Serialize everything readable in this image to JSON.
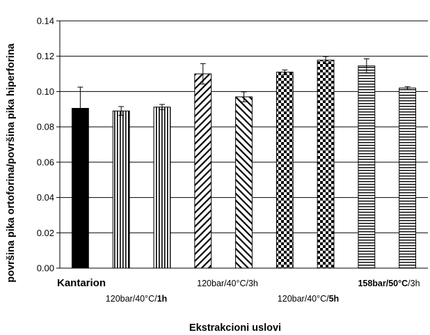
{
  "chart_data": {
    "type": "bar",
    "title": "",
    "xlabel": "Ekstrakcioni uslovi",
    "ylabel": "površina pika ortoforina/površina pika hiperforina",
    "ylim": [
      0,
      0.14
    ],
    "yticks": [
      "0.00",
      "0.02",
      "0.04",
      "0.06",
      "0.08",
      "0.10",
      "0.12",
      "0.14"
    ],
    "grid": true,
    "bars": [
      {
        "value": 0.0905,
        "error": 0.012,
        "pattern": "solid"
      },
      {
        "value": 0.089,
        "error": 0.0025,
        "pattern": "vertical-stripes"
      },
      {
        "value": 0.0912,
        "error": 0.0015,
        "pattern": "vertical-stripes"
      },
      {
        "value": 0.11,
        "error": 0.0058,
        "pattern": "forward-diagonal"
      },
      {
        "value": 0.097,
        "error": 0.0028,
        "pattern": "backward-diagonal"
      },
      {
        "value": 0.111,
        "error": 0.0012,
        "pattern": "checkerboard"
      },
      {
        "value": 0.1178,
        "error": 0.002,
        "pattern": "checkerboard"
      },
      {
        "value": 0.1145,
        "error": 0.004,
        "pattern": "horizontal-stripes"
      },
      {
        "value": 0.102,
        "error": 0.0008,
        "pattern": "horizontal-stripes"
      }
    ],
    "group_labels": [
      {
        "parts": [
          {
            "text": "Kantarion",
            "bold": true
          }
        ]
      },
      {
        "parts": [
          {
            "text": "120bar/40°C/",
            "bold": false
          },
          {
            "text": "1h",
            "bold": true
          }
        ]
      },
      {
        "parts": [
          {
            "text": "120bar/40°C/3h",
            "bold": false
          }
        ]
      },
      {
        "parts": [
          {
            "text": "120bar/40°C/",
            "bold": false
          },
          {
            "text": "5h",
            "bold": true
          }
        ]
      },
      {
        "parts": [
          {
            "text": "158bar/50°C",
            "bold": true
          },
          {
            "text": "/3h",
            "bold": false
          }
        ]
      }
    ]
  }
}
